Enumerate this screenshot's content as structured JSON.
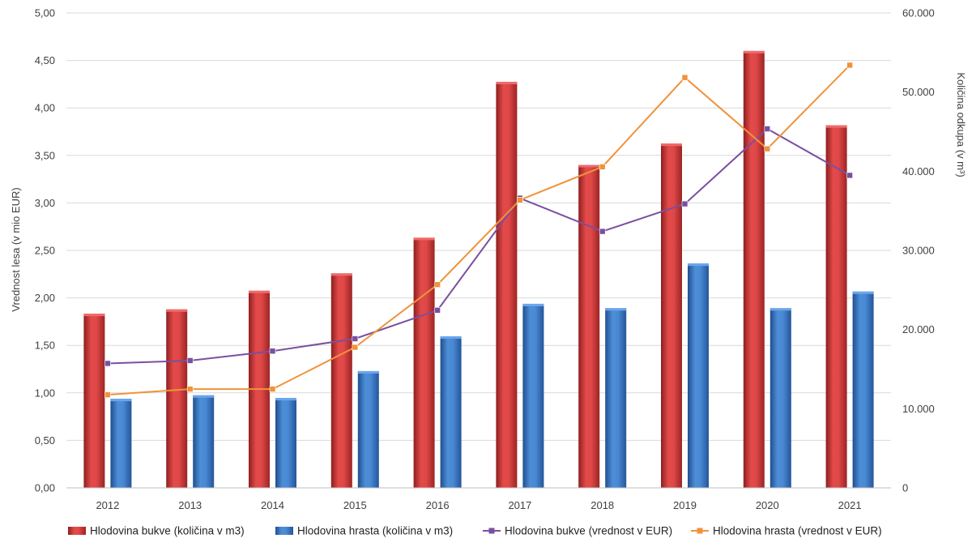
{
  "chart_data": {
    "type": "bar",
    "categories": [
      "2012",
      "2013",
      "2014",
      "2015",
      "2016",
      "2017",
      "2018",
      "2019",
      "2020",
      "2021"
    ],
    "series": [
      {
        "name": "Hlodovina bukve (količina v m3)",
        "kind": "bar",
        "axis": "right",
        "color": "#d94040",
        "values": [
          22000,
          22550,
          24900,
          27100,
          31600,
          51300,
          40800,
          43500,
          55200,
          45800
        ]
      },
      {
        "name": "Hlodovina hrasta (količina v m3)",
        "kind": "bar",
        "axis": "right",
        "color": "#3f7fcf",
        "values": [
          11250,
          11700,
          11350,
          14750,
          19150,
          23250,
          22700,
          28350,
          22700,
          24800
        ]
      },
      {
        "name": "Hlodovina bukve (vrednost v EUR)",
        "kind": "line",
        "axis": "left",
        "color": "#7a4fa0",
        "values": [
          1.31,
          1.34,
          1.44,
          1.57,
          1.87,
          3.05,
          2.7,
          2.99,
          3.78,
          3.29
        ]
      },
      {
        "name": "Hlodovina hrasta (vrednost v EUR)",
        "kind": "line",
        "axis": "left",
        "color": "#f0923a",
        "values": [
          0.98,
          1.04,
          1.04,
          1.48,
          2.14,
          3.03,
          3.38,
          4.32,
          3.57,
          4.45
        ]
      }
    ],
    "y_left": {
      "label": "Vrednost lesa (v mio EUR)",
      "lim": [
        0,
        5
      ],
      "ticks": [
        "0,00",
        "0,50",
        "1,00",
        "1,50",
        "2,00",
        "2,50",
        "3,00",
        "3,50",
        "4,00",
        "4,50",
        "5,00"
      ]
    },
    "y_right": {
      "label": "Količina odkupa (v m³)",
      "lim": [
        0,
        60000
      ],
      "ticks": [
        "0",
        "10.000",
        "20.000",
        "30.000",
        "40.000",
        "50.000",
        "60.000"
      ]
    },
    "grid": true,
    "legend": "bottom"
  }
}
